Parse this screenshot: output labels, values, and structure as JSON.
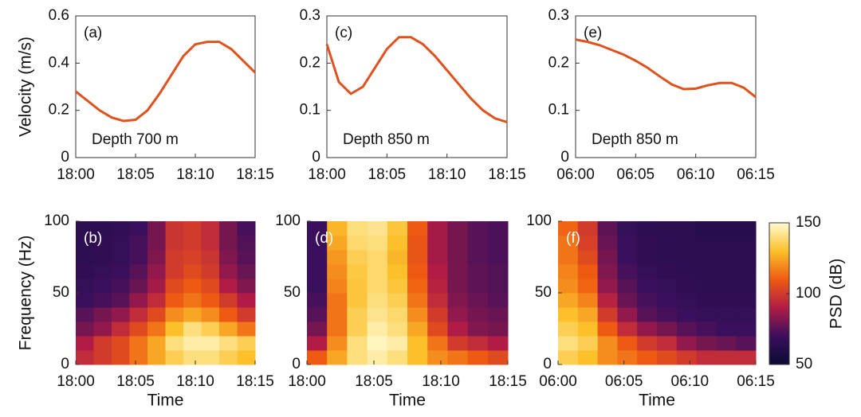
{
  "chart_data": [
    {
      "type": "line",
      "annotation": "(a)",
      "depth_label": "Depth 700 m",
      "ylabel": "Velocity (m/s)",
      "color": "#e0521d",
      "x": [
        0,
        1,
        2,
        3,
        4,
        5,
        6,
        7,
        8,
        9,
        10,
        11,
        12,
        13,
        14,
        15
      ],
      "values": [
        0.28,
        0.24,
        0.2,
        0.17,
        0.155,
        0.16,
        0.2,
        0.27,
        0.35,
        0.43,
        0.48,
        0.49,
        0.49,
        0.46,
        0.41,
        0.36
      ],
      "xlim": [
        0,
        15
      ],
      "xticks": [
        {
          "value": 0,
          "label": "18:00"
        },
        {
          "value": 5,
          "label": "18:05"
        },
        {
          "value": 10,
          "label": "18:10"
        },
        {
          "value": 15,
          "label": "18:15"
        }
      ],
      "ylim": [
        0,
        0.6
      ],
      "yticks": [
        0,
        0.2,
        0.4,
        0.6
      ]
    },
    {
      "type": "heatmap",
      "annotation": "(b)",
      "ylabel": "Frequency (Hz)",
      "xlabel": "Time",
      "xlim": [
        0,
        15
      ],
      "xticks": [
        {
          "value": 0,
          "label": "18:00"
        },
        {
          "value": 5,
          "label": "18:05"
        },
        {
          "value": 10,
          "label": "18:10"
        },
        {
          "value": 15,
          "label": "18:15"
        }
      ],
      "ylim": [
        0,
        100
      ],
      "yticks": [
        0,
        50,
        100
      ],
      "z": [
        [
          95,
          100,
          105,
          115,
          125,
          135,
          140,
          140,
          135,
          130
        ],
        [
          90,
          100,
          105,
          115,
          125,
          140,
          145,
          145,
          140,
          135
        ],
        [
          80,
          85,
          95,
          105,
          115,
          130,
          140,
          135,
          125,
          115
        ],
        [
          75,
          80,
          85,
          95,
          105,
          120,
          125,
          120,
          110,
          100
        ],
        [
          70,
          72,
          75,
          85,
          95,
          110,
          115,
          110,
          100,
          90
        ],
        [
          68,
          70,
          72,
          78,
          88,
          105,
          110,
          105,
          90,
          82
        ],
        [
          66,
          68,
          70,
          75,
          85,
          100,
          105,
          100,
          85,
          78
        ],
        [
          65,
          66,
          68,
          72,
          82,
          100,
          102,
          98,
          82,
          75
        ],
        [
          65,
          66,
          68,
          72,
          80,
          98,
          100,
          95,
          80,
          74
        ],
        [
          64,
          65,
          67,
          70,
          80,
          98,
          100,
          95,
          80,
          72
        ]
      ]
    },
    {
      "type": "line",
      "annotation": "(c)",
      "depth_label": "Depth 850 m",
      "color": "#e0521d",
      "x": [
        0,
        1,
        2,
        3,
        4,
        5,
        6,
        7,
        8,
        9,
        10,
        11,
        12,
        13,
        14,
        15
      ],
      "values": [
        0.24,
        0.16,
        0.135,
        0.15,
        0.19,
        0.23,
        0.255,
        0.255,
        0.24,
        0.215,
        0.185,
        0.155,
        0.125,
        0.1,
        0.083,
        0.075
      ],
      "xlim": [
        0,
        15
      ],
      "xticks": [
        {
          "value": 0,
          "label": "18:00"
        },
        {
          "value": 5,
          "label": "18:05"
        },
        {
          "value": 10,
          "label": "18:10"
        },
        {
          "value": 15,
          "label": "18:15"
        }
      ],
      "ylim": [
        0,
        0.3
      ],
      "yticks": [
        0,
        0.1,
        0.2,
        0.3
      ]
    },
    {
      "type": "heatmap",
      "annotation": "(d)",
      "xlabel": "Time",
      "xlim": [
        0,
        15
      ],
      "xticks": [
        {
          "value": 0,
          "label": "18:00"
        },
        {
          "value": 5,
          "label": "18:05"
        },
        {
          "value": 10,
          "label": "18:10"
        },
        {
          "value": 15,
          "label": "18:15"
        }
      ],
      "ylim": [
        0,
        100
      ],
      "yticks": [
        0,
        50,
        100
      ],
      "z": [
        [
          110,
          125,
          140,
          145,
          140,
          130,
          120,
          115,
          110,
          105
        ],
        [
          90,
          120,
          140,
          148,
          145,
          130,
          115,
          100,
          95,
          90
        ],
        [
          80,
          115,
          135,
          145,
          140,
          125,
          105,
          90,
          82,
          80
        ],
        [
          75,
          115,
          135,
          142,
          138,
          120,
          100,
          85,
          80,
          78
        ],
        [
          72,
          115,
          132,
          140,
          135,
          115,
          95,
          82,
          78,
          75
        ],
        [
          70,
          118,
          132,
          138,
          132,
          112,
          92,
          80,
          76,
          74
        ],
        [
          70,
          120,
          133,
          138,
          130,
          110,
          90,
          80,
          76,
          74
        ],
        [
          70,
          122,
          135,
          138,
          128,
          108,
          88,
          80,
          75,
          73
        ],
        [
          70,
          125,
          138,
          140,
          130,
          108,
          88,
          80,
          75,
          73
        ],
        [
          70,
          128,
          140,
          142,
          132,
          110,
          88,
          80,
          75,
          73
        ]
      ]
    },
    {
      "type": "line",
      "annotation": "(e)",
      "depth_label": "Depth 850 m",
      "color": "#e0521d",
      "x": [
        0,
        1,
        2,
        3,
        4,
        5,
        6,
        7,
        8,
        9,
        10,
        11,
        12,
        13,
        14,
        15
      ],
      "values": [
        0.25,
        0.245,
        0.238,
        0.228,
        0.218,
        0.205,
        0.19,
        0.172,
        0.155,
        0.145,
        0.146,
        0.153,
        0.158,
        0.158,
        0.148,
        0.128
      ],
      "xlim": [
        0,
        15
      ],
      "xticks": [
        {
          "value": 0,
          "label": "06:00"
        },
        {
          "value": 5,
          "label": "06:05"
        },
        {
          "value": 10,
          "label": "06:10"
        },
        {
          "value": 15,
          "label": "06:15"
        }
      ],
      "ylim": [
        0,
        0.3
      ],
      "yticks": [
        0,
        0.1,
        0.2,
        0.3
      ]
    },
    {
      "type": "heatmap",
      "annotation": "(f)",
      "xlabel": "Time",
      "xlim": [
        0,
        15
      ],
      "xticks": [
        {
          "value": 0,
          "label": "06:00"
        },
        {
          "value": 5,
          "label": "06:05"
        },
        {
          "value": 10,
          "label": "06:10"
        },
        {
          "value": 15,
          "label": "06:15"
        }
      ],
      "ylim": [
        0,
        100
      ],
      "yticks": [
        0,
        50,
        100
      ],
      "z": [
        [
          135,
          130,
          120,
          115,
          110,
          105,
          100,
          95,
          95,
          95
        ],
        [
          140,
          135,
          120,
          110,
          100,
          95,
          85,
          80,
          78,
          75
        ],
        [
          135,
          130,
          110,
          95,
          85,
          80,
          75,
          72,
          70,
          70
        ],
        [
          130,
          125,
          100,
          85,
          75,
          72,
          70,
          68,
          68,
          68
        ],
        [
          125,
          118,
          92,
          78,
          72,
          70,
          68,
          66,
          66,
          66
        ],
        [
          120,
          112,
          85,
          75,
          70,
          68,
          66,
          65,
          65,
          65
        ],
        [
          118,
          110,
          82,
          72,
          68,
          66,
          65,
          64,
          64,
          64
        ],
        [
          115,
          105,
          80,
          70,
          66,
          65,
          64,
          63,
          63,
          63
        ],
        [
          115,
          102,
          78,
          70,
          66,
          65,
          64,
          63,
          63,
          63
        ],
        [
          112,
          100,
          76,
          68,
          65,
          64,
          63,
          62,
          62,
          62
        ]
      ]
    }
  ],
  "colorbar": {
    "label": "PSD (dB)",
    "clim": [
      50,
      150
    ],
    "ticks": [
      50,
      100,
      150
    ],
    "colormap": [
      "#0b0b35",
      "#3a0f5c",
      "#b01c46",
      "#ef5a12",
      "#fbc02a",
      "#fffbd0"
    ]
  }
}
